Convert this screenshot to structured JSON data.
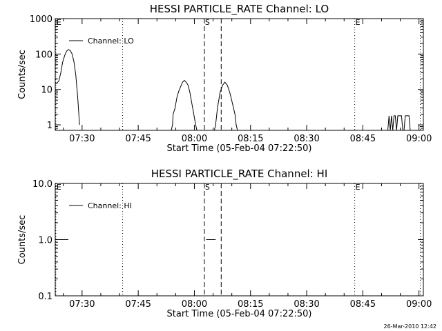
{
  "chart_data": [
    {
      "type": "line",
      "title": "HESSI PARTICLE_RATE Channel: LO",
      "xlabel": "Start Time (05-Feb-04 07:22:50)",
      "ylabel": "Counts/sec",
      "yscale": "log",
      "ylim": [
        0.7,
        1000
      ],
      "xlim": [
        "07:22:50",
        "09:01:10"
      ],
      "x_ticks": [
        "07:30",
        "07:45",
        "08:00",
        "08:15",
        "08:30",
        "08:45",
        "09:00"
      ],
      "y_ticks": [
        "1",
        "10",
        "100",
        "1000"
      ],
      "legend": {
        "label": "Channel: LO",
        "placement": "top-left"
      },
      "vlines": [
        {
          "time": "07:23:00",
          "style": "dotted",
          "label": "E"
        },
        {
          "time": "07:40:50",
          "style": "dotted",
          "label": ""
        },
        {
          "time": "08:02:40",
          "style": "dashed",
          "label": "S"
        },
        {
          "time": "08:07:10",
          "style": "dashed",
          "label": ""
        },
        {
          "time": "08:42:50",
          "style": "dotted",
          "label": "E"
        },
        {
          "time": "09:00:20",
          "style": "dotted",
          "label": ""
        }
      ],
      "series": [
        {
          "name": "Channel: LO",
          "segments": [
            [
              [
                "07:22:50",
                14
              ],
              [
                "07:23:20",
                15
              ],
              [
                "07:23:50",
                18
              ],
              [
                "07:24:20",
                30
              ],
              [
                "07:24:50",
                60
              ],
              [
                "07:25:20",
                90
              ],
              [
                "07:25:50",
                120
              ],
              [
                "07:26:20",
                135
              ],
              [
                "07:26:50",
                125
              ],
              [
                "07:27:20",
                100
              ],
              [
                "07:27:50",
                60
              ],
              [
                "07:28:20",
                25
              ],
              [
                "07:28:50",
                6
              ],
              [
                "07:29:20",
                1
              ]
            ],
            [
              [
                "07:53:50",
                0.7
              ],
              [
                "07:54:10",
                1
              ],
              [
                "07:54:20",
                2
              ],
              [
                "07:54:50",
                3
              ],
              [
                "07:55:20",
                6
              ],
              [
                "07:55:50",
                9
              ],
              [
                "07:56:20",
                12
              ],
              [
                "07:56:50",
                16
              ],
              [
                "07:57:20",
                18
              ],
              [
                "07:57:50",
                16
              ],
              [
                "07:58:20",
                13
              ],
              [
                "07:58:50",
                8
              ],
              [
                "07:59:20",
                4
              ],
              [
                "07:59:50",
                2
              ],
              [
                "08:00:20",
                1
              ],
              [
                "08:00:40",
                0.7
              ]
            ],
            [
              [
                "08:05:20",
                0.7
              ],
              [
                "08:05:40",
                1
              ],
              [
                "08:06:10",
                3
              ],
              [
                "08:06:50",
                8
              ],
              [
                "08:07:30",
                13
              ],
              [
                "08:08:10",
                16
              ],
              [
                "08:08:50",
                13
              ],
              [
                "08:09:30",
                8
              ],
              [
                "08:10:10",
                4
              ],
              [
                "08:10:50",
                2
              ],
              [
                "08:11:10",
                1
              ],
              [
                "08:11:30",
                0.7
              ]
            ],
            [
              [
                "08:51:40",
                0.7
              ],
              [
                "08:52:00",
                1.8
              ],
              [
                "08:52:20",
                0.7
              ],
              [
                "08:52:40",
                1.8
              ],
              [
                "08:53:00",
                0.7
              ],
              [
                "08:53:20",
                1.8
              ],
              [
                "08:53:40",
                1.8
              ],
              [
                "08:54:00",
                0.7
              ],
              [
                "08:54:20",
                1.8
              ],
              [
                "08:55:00",
                1.8
              ],
              [
                "08:55:20",
                1.8
              ],
              [
                "08:55:40",
                0.7
              ],
              [
                "08:56:00",
                0.7
              ],
              [
                "08:56:20",
                1.8
              ],
              [
                "08:57:20",
                1.8
              ],
              [
                "08:57:40",
                0.7
              ]
            ]
          ]
        }
      ]
    },
    {
      "type": "line",
      "title": "HESSI PARTICLE_RATE Channel: HI",
      "xlabel": "Start Time (05-Feb-04 07:22:50)",
      "ylabel": "Counts/sec",
      "yscale": "log",
      "ylim": [
        0.1,
        10
      ],
      "xlim": [
        "07:22:50",
        "09:01:10"
      ],
      "x_ticks": [
        "07:30",
        "07:45",
        "08:00",
        "08:15",
        "08:30",
        "08:45",
        "09:00"
      ],
      "y_ticks": [
        "0.1",
        "1.0",
        "10.0"
      ],
      "legend": {
        "label": "Channel: HI",
        "placement": "top-left"
      },
      "vlines": [
        {
          "time": "07:23:00",
          "style": "dotted",
          "label": "E"
        },
        {
          "time": "07:40:50",
          "style": "dotted",
          "label": ""
        },
        {
          "time": "08:02:40",
          "style": "dashed",
          "label": "S"
        },
        {
          "time": "08:07:10",
          "style": "dashed",
          "label": ""
        },
        {
          "time": "08:42:50",
          "style": "dotted",
          "label": "E"
        },
        {
          "time": "09:00:20",
          "style": "dotted",
          "label": ""
        }
      ],
      "series": [
        {
          "name": "Channel: HI",
          "segments": [
            [
              [
                "07:23:10",
                1
              ],
              [
                "07:26:20",
                1
              ]
            ],
            [
              [
                "08:03:10",
                1
              ],
              [
                "08:05:40",
                1
              ]
            ]
          ]
        }
      ]
    }
  ],
  "timestamp": "26-Mar-2010 12:42"
}
